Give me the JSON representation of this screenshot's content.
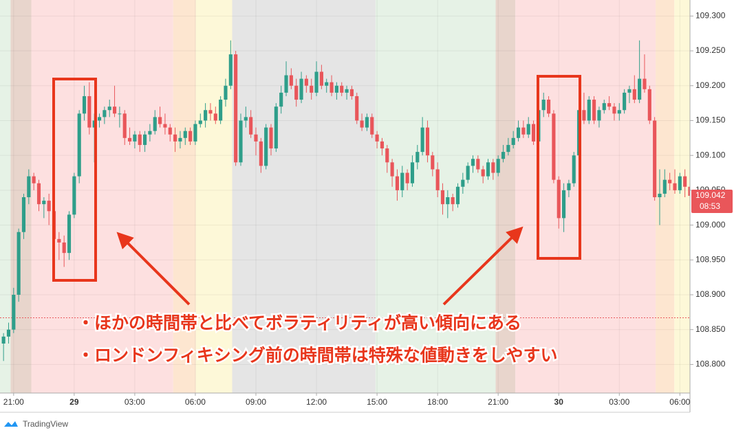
{
  "chart_data": {
    "type": "candlestick",
    "up_color": "#2e9e8a",
    "down_color": "#e9565a",
    "grid": true,
    "xlim": [
      -0.7,
      136
    ],
    "ylim": [
      108.759,
      109.323
    ],
    "xticks": [
      {
        "value": 2,
        "label": "21:00"
      },
      {
        "value": 14,
        "label": "29"
      },
      {
        "value": 26,
        "label": "03:00"
      },
      {
        "value": 38,
        "label": "06:00"
      },
      {
        "value": 50,
        "label": "09:00"
      },
      {
        "value": 62,
        "label": "12:00"
      },
      {
        "value": 74,
        "label": "15:00"
      },
      {
        "value": 86,
        "label": "18:00"
      },
      {
        "value": 98,
        "label": "21:00"
      },
      {
        "value": 110,
        "label": "30"
      },
      {
        "value": 122,
        "label": "03:00"
      },
      {
        "value": 134,
        "label": "06:00"
      }
    ],
    "yticks": [
      {
        "value": 109.3,
        "label": "109.300"
      },
      {
        "value": 109.25,
        "label": "109.250"
      },
      {
        "value": 109.2,
        "label": "109.200"
      },
      {
        "value": 109.15,
        "label": "109.150"
      },
      {
        "value": 109.1,
        "label": "109.100"
      },
      {
        "value": 109.05,
        "label": "109.050"
      },
      {
        "value": 109.0,
        "label": "109.000"
      },
      {
        "value": 108.95,
        "label": "108.950"
      },
      {
        "value": 108.9,
        "label": "108.900"
      },
      {
        "value": 108.85,
        "label": "108.850"
      },
      {
        "value": 108.8,
        "label": "108.800"
      }
    ],
    "bands": [
      {
        "from": -0.7,
        "to": 1.4,
        "color": "#e6f2e6"
      },
      {
        "from": 1.4,
        "to": 5.5,
        "color": "#e8d5cc"
      },
      {
        "from": 5.5,
        "to": 33.6,
        "color": "#fde0e0"
      },
      {
        "from": 33.6,
        "to": 38.1,
        "color": "#fde6d0"
      },
      {
        "from": 38.1,
        "to": 45.3,
        "color": "#fdf8d8"
      },
      {
        "from": 45.3,
        "to": 73.7,
        "color": "#e5e5e5"
      },
      {
        "from": 73.7,
        "to": 97.5,
        "color": "#e6f2e6"
      },
      {
        "from": 97.5,
        "to": 101.4,
        "color": "#e8d5cc"
      },
      {
        "from": 101.4,
        "to": 129.2,
        "color": "#fde0e0"
      },
      {
        "from": 129.2,
        "to": 132.9,
        "color": "#fde6d0"
      },
      {
        "from": 132.9,
        "to": 136,
        "color": "#fdf8d8"
      }
    ],
    "reference_line": 108.867,
    "last_price": {
      "value": 109.042,
      "label": "109.042"
    },
    "countdown": "08:53",
    "annotations": [
      "・ほかの時間帯と比べてボラティリティが高い傾向にある",
      "・ロンドンフィキシング前の時間帯は特殊な値動きをしやすい"
    ],
    "brand": "TradingView",
    "candles": [
      [
        108.83,
        108.845,
        108.805,
        108.84
      ],
      [
        108.84,
        108.86,
        108.83,
        108.85
      ],
      [
        108.85,
        108.91,
        108.845,
        108.9
      ],
      [
        108.9,
        108.995,
        108.89,
        108.99
      ],
      [
        108.99,
        109.045,
        108.98,
        109.04
      ],
      [
        109.04,
        109.08,
        109.03,
        109.07
      ],
      [
        109.07,
        109.075,
        109.05,
        109.06
      ],
      [
        109.06,
        109.065,
        109.02,
        109.03
      ],
      [
        109.03,
        109.04,
        109.01,
        109.035
      ],
      [
        109.035,
        109.045,
        109.0,
        109.02
      ],
      [
        109.02,
        109.025,
        108.97,
        108.98
      ],
      [
        108.98,
        108.99,
        108.95,
        108.975
      ],
      [
        108.975,
        108.985,
        108.94,
        108.96
      ],
      [
        108.96,
        109.02,
        108.95,
        109.015
      ],
      [
        109.015,
        109.075,
        109.01,
        109.07
      ],
      [
        109.07,
        109.165,
        109.06,
        109.16
      ],
      [
        109.16,
        109.2,
        109.15,
        109.185
      ],
      [
        109.185,
        109.205,
        109.13,
        109.14
      ],
      [
        109.14,
        109.16,
        109.09,
        109.15
      ],
      [
        109.15,
        109.16,
        109.14,
        109.155
      ],
      [
        109.155,
        109.17,
        109.145,
        109.165
      ],
      [
        109.165,
        109.18,
        109.155,
        109.17
      ],
      [
        109.17,
        109.2,
        109.155,
        109.16
      ],
      [
        109.16,
        109.17,
        109.14,
        109.16
      ],
      [
        109.16,
        109.165,
        109.115,
        109.125
      ],
      [
        109.125,
        109.14,
        109.115,
        109.12
      ],
      [
        109.12,
        109.135,
        109.11,
        109.13
      ],
      [
        109.13,
        109.135,
        109.105,
        109.115
      ],
      [
        109.115,
        109.135,
        109.105,
        109.13
      ],
      [
        109.13,
        109.145,
        109.12,
        109.135
      ],
      [
        109.135,
        109.165,
        109.13,
        109.155
      ],
      [
        109.155,
        109.17,
        109.14,
        109.145
      ],
      [
        109.145,
        109.16,
        109.13,
        109.14
      ],
      [
        109.14,
        109.145,
        109.12,
        109.13
      ],
      [
        109.13,
        109.14,
        109.105,
        109.12
      ],
      [
        109.12,
        109.135,
        109.11,
        109.125
      ],
      [
        109.125,
        109.14,
        109.115,
        109.135
      ],
      [
        109.135,
        109.14,
        109.115,
        109.12
      ],
      [
        109.12,
        109.15,
        109.115,
        109.145
      ],
      [
        109.145,
        109.16,
        109.14,
        109.15
      ],
      [
        109.15,
        109.175,
        109.14,
        109.165
      ],
      [
        109.165,
        109.175,
        109.15,
        109.16
      ],
      [
        109.16,
        109.17,
        109.145,
        109.15
      ],
      [
        109.15,
        109.185,
        109.145,
        109.18
      ],
      [
        109.18,
        109.21,
        109.17,
        109.2
      ],
      [
        109.2,
        109.265,
        109.195,
        109.245
      ],
      [
        109.245,
        109.25,
        109.085,
        109.09
      ],
      [
        109.09,
        109.16,
        109.085,
        109.15
      ],
      [
        109.15,
        109.17,
        109.14,
        109.155
      ],
      [
        109.155,
        109.165,
        109.125,
        109.13
      ],
      [
        109.13,
        109.14,
        109.1,
        109.12
      ],
      [
        109.12,
        109.125,
        109.075,
        109.085
      ],
      [
        109.085,
        109.145,
        109.08,
        109.14
      ],
      [
        109.14,
        109.145,
        109.1,
        109.11
      ],
      [
        109.11,
        109.175,
        109.105,
        109.17
      ],
      [
        109.17,
        109.2,
        109.16,
        109.19
      ],
      [
        109.19,
        109.235,
        109.185,
        109.215
      ],
      [
        109.215,
        109.225,
        109.195,
        109.2
      ],
      [
        109.2,
        109.21,
        109.17,
        109.18
      ],
      [
        109.18,
        109.22,
        109.175,
        109.21
      ],
      [
        109.21,
        109.215,
        109.19,
        109.2
      ],
      [
        109.2,
        109.21,
        109.18,
        109.19
      ],
      [
        109.19,
        109.235,
        109.185,
        109.22
      ],
      [
        109.22,
        109.23,
        109.195,
        109.2
      ],
      [
        109.2,
        109.21,
        109.19,
        109.205
      ],
      [
        109.205,
        109.215,
        109.185,
        109.19
      ],
      [
        109.19,
        109.205,
        109.18,
        109.2
      ],
      [
        109.2,
        109.205,
        109.185,
        109.19
      ],
      [
        109.19,
        109.2,
        109.18,
        109.195
      ],
      [
        109.195,
        109.2,
        109.18,
        109.185
      ],
      [
        109.185,
        109.19,
        109.145,
        109.15
      ],
      [
        109.15,
        109.16,
        109.135,
        109.14
      ],
      [
        109.14,
        109.16,
        109.135,
        109.155
      ],
      [
        109.155,
        109.16,
        109.125,
        109.13
      ],
      [
        109.13,
        109.135,
        109.11,
        109.12
      ],
      [
        109.12,
        109.125,
        109.1,
        109.11
      ],
      [
        109.11,
        109.115,
        109.075,
        109.09
      ],
      [
        109.09,
        109.095,
        109.055,
        109.07
      ],
      [
        109.07,
        109.08,
        109.035,
        109.05
      ],
      [
        109.05,
        109.085,
        109.04,
        109.075
      ],
      [
        109.075,
        109.08,
        109.05,
        109.06
      ],
      [
        109.06,
        109.1,
        109.055,
        109.09
      ],
      [
        109.09,
        109.115,
        109.08,
        109.105
      ],
      [
        109.105,
        109.155,
        109.1,
        109.14
      ],
      [
        109.14,
        109.15,
        109.09,
        109.1
      ],
      [
        109.1,
        109.105,
        109.07,
        109.08
      ],
      [
        109.08,
        109.09,
        109.04,
        109.05
      ],
      [
        109.05,
        109.06,
        109.015,
        109.03
      ],
      [
        109.03,
        109.05,
        109.01,
        109.04
      ],
      [
        109.04,
        109.045,
        109.02,
        109.03
      ],
      [
        109.03,
        109.06,
        109.025,
        109.055
      ],
      [
        109.055,
        109.075,
        109.045,
        109.065
      ],
      [
        109.065,
        109.09,
        109.06,
        109.085
      ],
      [
        109.085,
        109.1,
        109.075,
        109.095
      ],
      [
        109.095,
        109.1,
        109.075,
        109.08
      ],
      [
        109.08,
        109.085,
        109.06,
        109.07
      ],
      [
        109.07,
        109.095,
        109.065,
        109.09
      ],
      [
        109.09,
        109.095,
        109.065,
        109.075
      ],
      [
        109.075,
        109.1,
        109.07,
        109.095
      ],
      [
        109.095,
        109.115,
        109.09,
        109.105
      ],
      [
        109.105,
        109.125,
        109.1,
        109.115
      ],
      [
        109.115,
        109.135,
        109.11,
        109.125
      ],
      [
        109.125,
        109.15,
        109.12,
        109.14
      ],
      [
        109.14,
        109.15,
        109.125,
        109.13
      ],
      [
        109.13,
        109.155,
        109.125,
        109.145
      ],
      [
        109.145,
        109.15,
        109.115,
        109.12
      ],
      [
        109.12,
        109.17,
        109.115,
        109.165
      ],
      [
        109.165,
        109.19,
        109.155,
        109.18
      ],
      [
        109.18,
        109.185,
        109.155,
        109.16
      ],
      [
        109.16,
        109.165,
        109.06,
        109.065
      ],
      [
        109.065,
        109.07,
        108.995,
        109.01
      ],
      [
        109.01,
        109.06,
        108.99,
        109.05
      ],
      [
        109.05,
        109.065,
        109.04,
        109.06
      ],
      [
        109.06,
        109.105,
        109.055,
        109.1
      ],
      [
        109.1,
        109.175,
        109.095,
        109.165
      ],
      [
        109.165,
        109.19,
        109.145,
        109.15
      ],
      [
        109.15,
        109.185,
        109.145,
        109.18
      ],
      [
        109.18,
        109.185,
        109.145,
        109.15
      ],
      [
        109.15,
        109.17,
        109.14,
        109.165
      ],
      [
        109.165,
        109.18,
        109.16,
        109.175
      ],
      [
        109.175,
        109.185,
        109.165,
        109.17
      ],
      [
        109.17,
        109.175,
        109.15,
        109.16
      ],
      [
        109.16,
        109.175,
        109.15,
        109.165
      ],
      [
        109.165,
        109.195,
        109.16,
        109.19
      ],
      [
        109.19,
        109.2,
        109.175,
        109.195
      ],
      [
        109.195,
        109.215,
        109.175,
        109.18
      ],
      [
        109.18,
        109.265,
        109.175,
        109.21
      ],
      [
        109.21,
        109.245,
        109.19,
        109.195
      ],
      [
        109.195,
        109.2,
        109.145,
        109.15
      ],
      [
        109.15,
        109.155,
        109.035,
        109.04
      ],
      [
        109.04,
        109.08,
        109.0,
        109.045
      ],
      [
        109.045,
        109.08,
        109.04,
        109.065
      ],
      [
        109.065,
        109.075,
        109.05,
        109.06
      ],
      [
        109.06,
        109.08,
        109.045,
        109.05
      ],
      [
        109.05,
        109.075,
        109.045,
        109.07
      ],
      [
        109.07,
        109.08,
        109.04,
        109.055
      ],
      [
        109.055,
        109.065,
        109.04,
        109.042
      ]
    ]
  }
}
